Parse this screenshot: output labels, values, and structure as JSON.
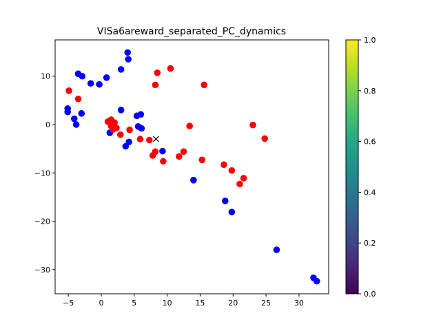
{
  "chart_data": {
    "type": "scatter",
    "title": "VISa6areward_separated_PC_dynamics",
    "xlabel": "",
    "ylabel": "",
    "xlim": [
      -7,
      34.5
    ],
    "ylim": [
      -35,
      17.5
    ],
    "xticks": [
      -5,
      0,
      5,
      10,
      15,
      20,
      25,
      30
    ],
    "yticks": [
      -30,
      -20,
      -10,
      0,
      10
    ],
    "grid": false,
    "series": [
      {
        "color": "#0000ff",
        "points": [
          [
            4.0,
            14.9
          ],
          [
            4.1,
            13.5
          ],
          [
            -3.5,
            10.5
          ],
          [
            -2.9,
            10.0
          ],
          [
            -1.6,
            8.5
          ],
          [
            -0.3,
            8.3
          ],
          [
            0.8,
            9.7
          ],
          [
            3.0,
            11.4
          ],
          [
            -5.1,
            3.3
          ],
          [
            -5.1,
            2.6
          ],
          [
            -3.0,
            2.3
          ],
          [
            -4.1,
            1.2
          ],
          [
            -3.8,
            0.0
          ],
          [
            3.0,
            3.0
          ],
          [
            5.4,
            1.8
          ],
          [
            6.0,
            2.1
          ],
          [
            5.6,
            -0.4
          ],
          [
            6.1,
            -0.8
          ],
          [
            1.3,
            -1.7
          ],
          [
            4.2,
            -3.6
          ],
          [
            3.7,
            -4.5
          ],
          [
            9.3,
            -5.5
          ],
          [
            14.0,
            -11.5
          ],
          [
            18.8,
            -15.8
          ],
          [
            19.8,
            -18.1
          ],
          [
            26.6,
            -25.9
          ],
          [
            32.2,
            -31.7
          ],
          [
            32.7,
            -32.4
          ]
        ]
      },
      {
        "color": "#ff0000",
        "points": [
          [
            -4.9,
            7.0
          ],
          [
            -3.5,
            5.3
          ],
          [
            10.5,
            11.6
          ],
          [
            8.5,
            10.7
          ],
          [
            8.2,
            8.2
          ],
          [
            15.6,
            8.2
          ],
          [
            1.5,
            1.0
          ],
          [
            1.0,
            0.6
          ],
          [
            2.0,
            0.4
          ],
          [
            1.5,
            -0.3
          ],
          [
            2.3,
            -0.7
          ],
          [
            1.8,
            -1.0
          ],
          [
            4.3,
            -1.1
          ],
          [
            2.9,
            -2.1
          ],
          [
            5.9,
            -3.0
          ],
          [
            7.3,
            -3.2
          ],
          [
            13.4,
            -0.3
          ],
          [
            8.2,
            -5.6
          ],
          [
            7.8,
            -6.4
          ],
          [
            9.4,
            -7.6
          ],
          [
            11.8,
            -6.6
          ],
          [
            12.5,
            -5.6
          ],
          [
            15.3,
            -7.3
          ],
          [
            18.6,
            -8.3
          ],
          [
            19.8,
            -9.5
          ],
          [
            21.0,
            -12.3
          ],
          [
            21.6,
            -11.1
          ],
          [
            23.0,
            -0.1
          ],
          [
            24.8,
            -2.9
          ]
        ]
      }
    ],
    "marker_x": {
      "x": 8.3,
      "y": -3.0,
      "color": "#000000"
    },
    "colorbar": {
      "range": [
        0,
        1
      ],
      "ticks": [
        "0.0",
        "0.2",
        "0.4",
        "0.6",
        "0.8",
        "1.0"
      ],
      "colormap": "viridis"
    }
  }
}
